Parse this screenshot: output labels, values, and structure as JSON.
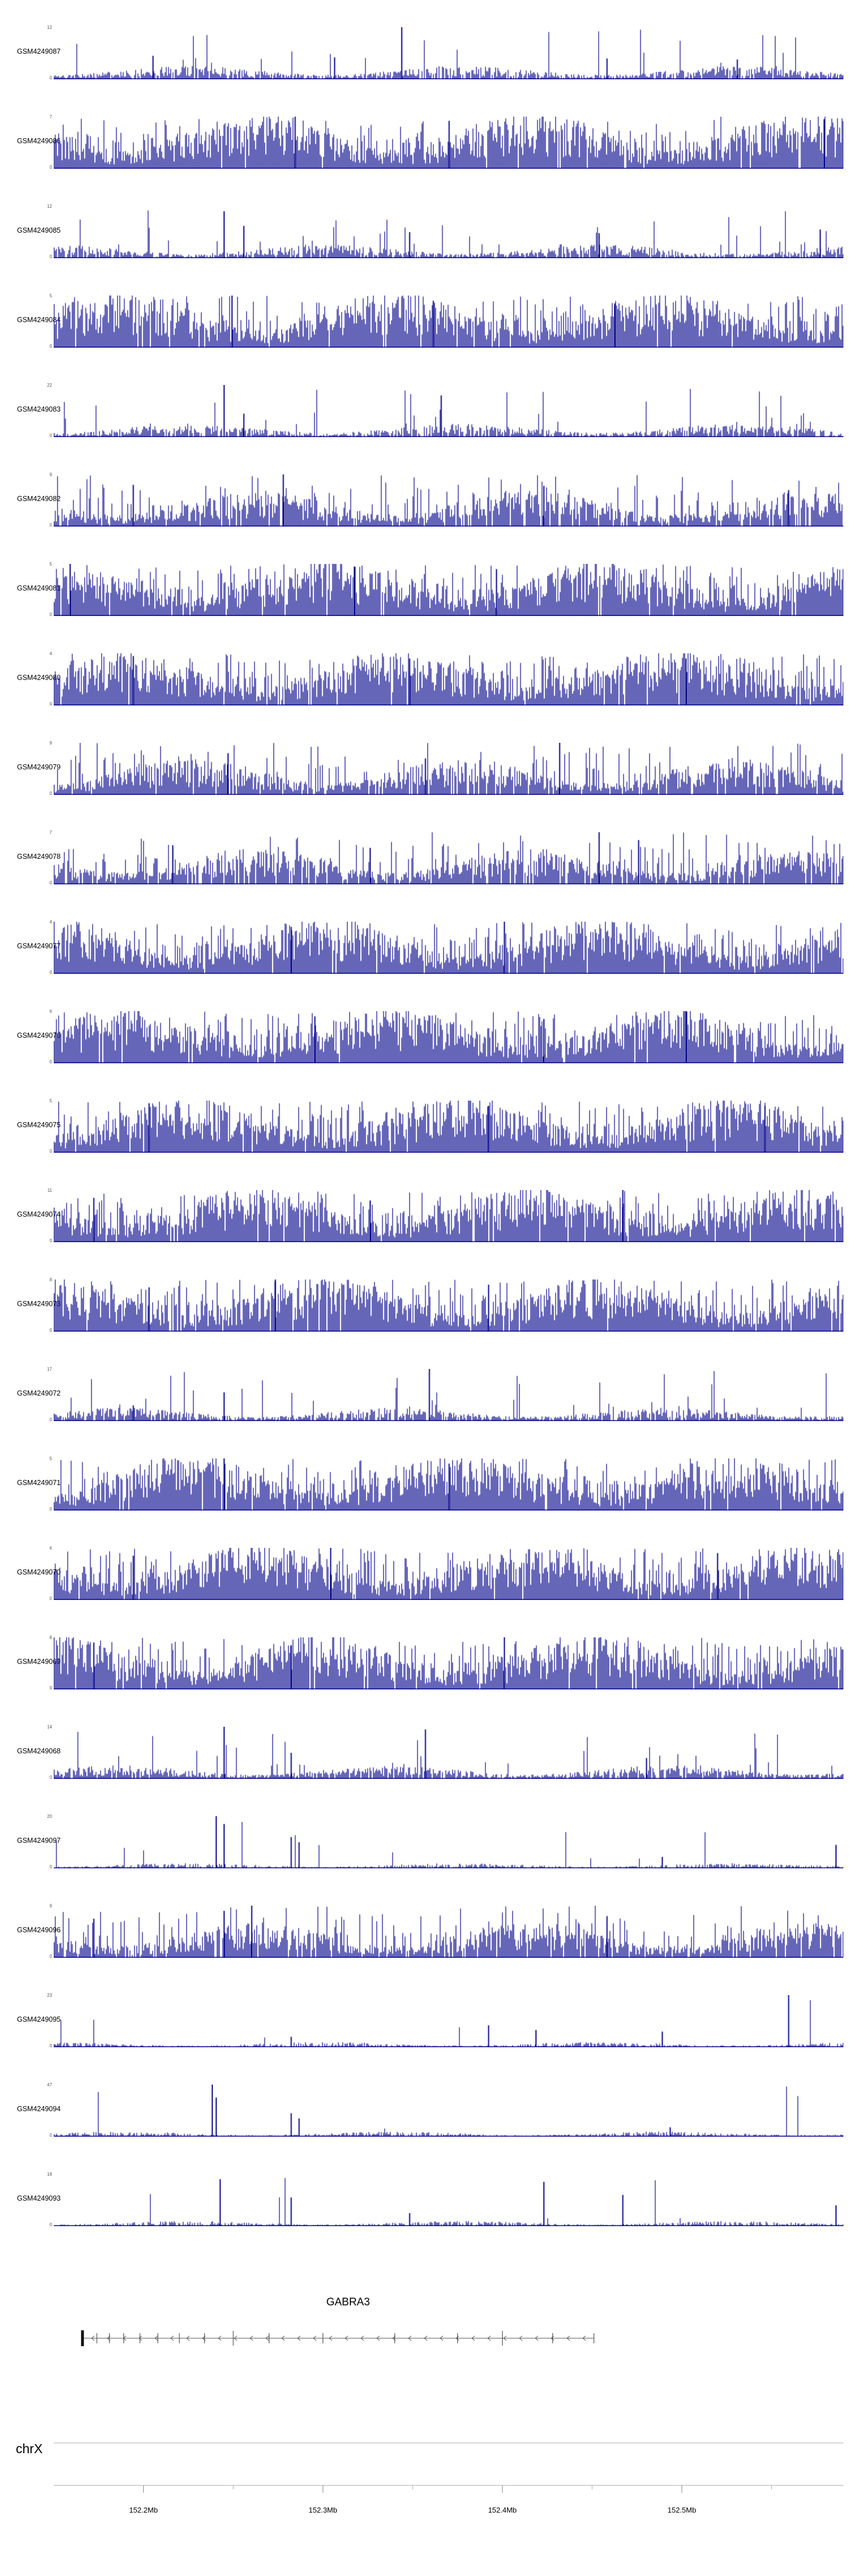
{
  "chart_data": {
    "type": "area",
    "subtype": "genome-coverage-tracks",
    "title": "",
    "signal_color": "#00008B",
    "axis_color": "#888888",
    "ruler_color": "#aaaaaa",
    "region": {
      "chromosome": "chrX",
      "x_start_mb": 152.15,
      "x_end_mb": 152.59,
      "ticks": [
        {
          "mb": 152.2,
          "label": "152.2Mb"
        },
        {
          "mb": 152.3,
          "label": "152.3Mb"
        },
        {
          "mb": 152.4,
          "label": "152.4Mb"
        },
        {
          "mb": 152.5,
          "label": "152.5Mb"
        }
      ],
      "minor_ticks_mb": [
        152.25,
        152.35,
        152.45,
        152.55
      ]
    },
    "gene": {
      "name": "GABRA3",
      "strand": "-",
      "start_mb": 152.166,
      "end_mb": 152.451,
      "exons_mb": [
        [
          152.166,
          "thick"
        ],
        [
          152.174,
          "n"
        ],
        [
          152.181,
          "n"
        ],
        [
          152.189,
          "n"
        ],
        [
          152.198,
          "n"
        ],
        [
          152.208,
          "n"
        ],
        [
          152.22,
          "n"
        ],
        [
          152.234,
          "n"
        ],
        [
          152.25,
          "tall"
        ],
        [
          152.27,
          "n"
        ],
        [
          152.3,
          "n"
        ],
        [
          152.34,
          "n"
        ],
        [
          152.375,
          "n"
        ],
        [
          152.4,
          "tall"
        ],
        [
          152.428,
          "n"
        ],
        [
          152.451,
          "n"
        ]
      ]
    },
    "profiles": {
      "dense": {
        "density": 0.97,
        "base": 0.55,
        "tallProb": 0.3,
        "tallMin": 0.5
      },
      "medium": {
        "density": 0.9,
        "base": 0.35,
        "tallProb": 0.18,
        "tallMin": 0.4
      },
      "low": {
        "density": 0.85,
        "base": 0.13,
        "tallProb": 0.05,
        "tallMin": 0.25
      },
      "sparse": {
        "density": 0.7,
        "base": 0.05,
        "tallProb": 0.012,
        "tallMin": 0.15
      }
    },
    "tracks": [
      {
        "label": "GSM4249087",
        "ymax": 12,
        "ymin": 0,
        "profile": "low",
        "seed": 11,
        "spikes": [
          [
            0.44,
            1.0
          ],
          [
            0.125,
            0.45
          ],
          [
            0.355,
            0.42
          ],
          [
            0.7,
            0.4
          ],
          [
            0.865,
            0.38
          ]
        ]
      },
      {
        "label": "GSM4249086",
        "ymax": 7,
        "ymin": 0,
        "profile": "dense",
        "seed": 22,
        "spikes": [
          [
            0.305,
            1.0
          ],
          [
            0.5,
            0.92
          ],
          [
            0.975,
            0.95
          ]
        ]
      },
      {
        "label": "GSM4249085",
        "ymax": 12,
        "ymin": 0,
        "profile": "low",
        "seed": 33,
        "spikes": [
          [
            0.215,
            0.9
          ],
          [
            0.24,
            0.62
          ],
          [
            0.45,
            0.5
          ],
          [
            0.69,
            0.48
          ],
          [
            0.97,
            0.55
          ]
        ]
      },
      {
        "label": "GSM4249084",
        "ymax": 5,
        "ymin": 0,
        "profile": "dense",
        "seed": 44,
        "spikes": [
          [
            0.225,
            1.0
          ],
          [
            0.48,
            0.9
          ],
          [
            0.71,
            0.85
          ]
        ]
      },
      {
        "label": "GSM4249083",
        "ymax": 22,
        "ymin": 0,
        "profile": "low",
        "seed": 55,
        "spikes": [
          [
            0.215,
            1.0
          ],
          [
            0.49,
            0.8
          ],
          [
            0.24,
            0.45
          ]
        ]
      },
      {
        "label": "GSM4249082",
        "ymax": 9,
        "ymin": 0,
        "profile": "medium",
        "seed": 66,
        "spikes": [
          [
            0.29,
            1.0
          ],
          [
            0.1,
            0.8
          ],
          [
            0.62,
            0.78
          ],
          [
            0.93,
            0.7
          ]
        ]
      },
      {
        "label": "GSM4249081",
        "ymax": 5,
        "ymin": 0,
        "profile": "dense",
        "seed": 77,
        "spikes": [
          [
            0.02,
            1.0
          ],
          [
            0.38,
            0.95
          ],
          [
            0.56,
            0.9
          ]
        ]
      },
      {
        "label": "GSM4249080",
        "ymax": 4,
        "ymin": 0,
        "profile": "dense",
        "seed": 88,
        "spikes": [
          [
            0.1,
            0.95
          ],
          [
            0.45,
            0.9
          ],
          [
            0.8,
            0.9
          ]
        ]
      },
      {
        "label": "GSM4249079",
        "ymax": 9,
        "ymin": 0,
        "profile": "medium",
        "seed": 99,
        "spikes": [
          [
            0.64,
            1.0
          ],
          [
            0.22,
            0.8
          ],
          [
            0.47,
            0.7
          ]
        ]
      },
      {
        "label": "GSM4249078",
        "ymax": 7,
        "ymin": 0,
        "profile": "medium",
        "seed": 110,
        "spikes": [
          [
            0.69,
            1.0
          ],
          [
            0.74,
            0.85
          ],
          [
            0.15,
            0.75
          ],
          [
            0.4,
            0.7
          ]
        ]
      },
      {
        "label": "GSM4249077",
        "ymax": 4,
        "ymin": 0,
        "profile": "dense",
        "seed": 121,
        "spikes": [
          [
            0.57,
            1.0
          ],
          [
            0.3,
            0.9
          ]
        ]
      },
      {
        "label": "GSM4249076",
        "ymax": 6,
        "ymin": 0,
        "profile": "dense",
        "seed": 132,
        "spikes": [
          [
            0.8,
            1.0
          ],
          [
            0.33,
            0.9
          ],
          [
            0.62,
            0.85
          ]
        ]
      },
      {
        "label": "GSM4249075",
        "ymax": 5,
        "ymin": 0,
        "profile": "dense",
        "seed": 143,
        "spikes": [
          [
            0.12,
            0.95
          ],
          [
            0.55,
            0.9
          ],
          [
            0.9,
            0.9
          ]
        ]
      },
      {
        "label": "GSM4249074",
        "ymax": 11,
        "ymin": 0,
        "profile": "dense",
        "seed": 154,
        "spikes": [
          [
            0.72,
            1.0
          ],
          [
            0.05,
            0.85
          ],
          [
            0.4,
            0.8
          ]
        ]
      },
      {
        "label": "GSM4249073",
        "ymax": 8,
        "ymin": 0,
        "profile": "dense",
        "seed": 165,
        "spikes": [
          [
            0.28,
            1.0
          ],
          [
            0.55,
            0.9
          ],
          [
            0.12,
            0.85
          ]
        ]
      },
      {
        "label": "GSM4249072",
        "ymax": 17,
        "ymin": 0,
        "profile": "low",
        "seed": 176,
        "spikes": [
          [
            0.475,
            1.0
          ],
          [
            0.215,
            0.55
          ],
          [
            0.1,
            0.3
          ]
        ]
      },
      {
        "label": "GSM4249071",
        "ymax": 5,
        "ymin": 0,
        "profile": "dense",
        "seed": 187,
        "spikes": [
          [
            0.215,
            1.0
          ],
          [
            0.5,
            0.9
          ]
        ]
      },
      {
        "label": "GSM4249070",
        "ymax": 6,
        "ymin": 0,
        "profile": "dense",
        "seed": 198,
        "spikes": [
          [
            0.35,
            1.0
          ],
          [
            0.84,
            0.9
          ],
          [
            0.1,
            0.85
          ]
        ]
      },
      {
        "label": "GSM4249069",
        "ymax": 8,
        "ymin": 0,
        "profile": "dense",
        "seed": 209,
        "spikes": [
          [
            0.57,
            1.0
          ],
          [
            0.05,
            0.9
          ],
          [
            0.3,
            0.85
          ]
        ]
      },
      {
        "label": "GSM4249068",
        "ymax": 14,
        "ymin": 0,
        "profile": "low",
        "seed": 220,
        "spikes": [
          [
            0.215,
            1.0
          ],
          [
            0.47,
            0.95
          ],
          [
            0.3,
            0.5
          ],
          [
            0.75,
            0.4
          ]
        ]
      },
      {
        "label": "GSM4249097",
        "ymax": 20,
        "ymin": 0,
        "profile": "sparse",
        "seed": 231,
        "spikes": [
          [
            0.205,
            1.0
          ],
          [
            0.215,
            0.85
          ],
          [
            0.3,
            0.6
          ],
          [
            0.31,
            0.5
          ],
          [
            0.77,
            0.22
          ],
          [
            0.99,
            0.45
          ]
        ]
      },
      {
        "label": "GSM4249096",
        "ymax": 9,
        "ymin": 0,
        "profile": "medium",
        "seed": 242,
        "spikes": [
          [
            0.25,
            1.0
          ],
          [
            0.215,
            0.9
          ],
          [
            0.7,
            0.8
          ],
          [
            0.05,
            0.75
          ]
        ]
      },
      {
        "label": "GSM4249095",
        "ymax": 23,
        "ymin": 0,
        "profile": "sparse",
        "seed": 253,
        "spikes": [
          [
            0.93,
            1.0
          ],
          [
            0.55,
            0.42
          ],
          [
            0.61,
            0.33
          ],
          [
            0.77,
            0.3
          ],
          [
            0.3,
            0.2
          ]
        ]
      },
      {
        "label": "GSM4249094",
        "ymax": 47,
        "ymin": 0,
        "profile": "sparse",
        "seed": 264,
        "spikes": [
          [
            0.2,
            1.0
          ],
          [
            0.205,
            0.75
          ],
          [
            0.3,
            0.45
          ],
          [
            0.31,
            0.35
          ],
          [
            0.78,
            0.18
          ]
        ]
      },
      {
        "label": "GSM4249093",
        "ymax": 18,
        "ymin": 0,
        "profile": "sparse",
        "seed": 275,
        "spikes": [
          [
            0.21,
            0.9
          ],
          [
            0.3,
            0.55
          ],
          [
            0.62,
            0.85
          ],
          [
            0.72,
            0.6
          ],
          [
            0.99,
            0.4
          ],
          [
            0.45,
            0.25
          ]
        ]
      }
    ]
  }
}
